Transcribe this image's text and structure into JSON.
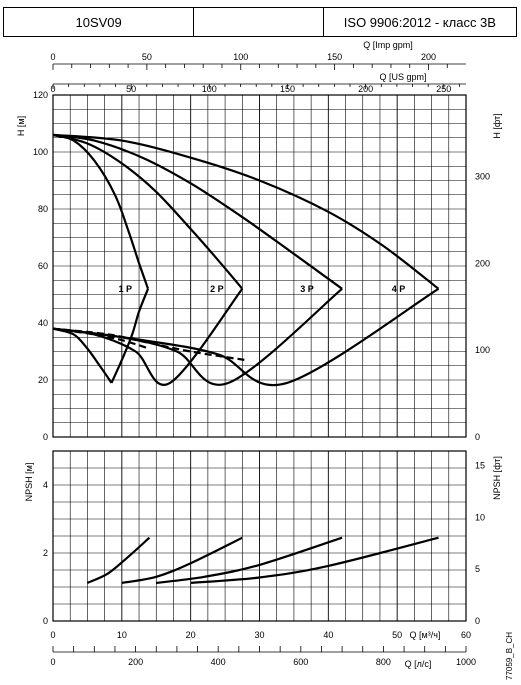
{
  "header": {
    "model": "10SV09",
    "middle": "",
    "standard": "ISO 9906:2012 - класс 3B"
  },
  "chart_data": [
    {
      "type": "line",
      "name": "head",
      "ylabel": "H [м]",
      "ylabel_right": "H [фт]",
      "xlabel_top1": "Q [Imp gpm]",
      "xlabel_top2": "Q [US gpm]",
      "xlim": [
        0,
        60
      ],
      "ylim": [
        0,
        120
      ],
      "yticks": [
        0,
        20,
        40,
        60,
        80,
        100,
        120
      ],
      "yticks_right": [
        0,
        100,
        200,
        300
      ],
      "xticks_imp": [
        0,
        50,
        100,
        150,
        200
      ],
      "xticks_us": [
        0,
        50,
        100,
        150,
        200,
        250
      ],
      "series": [
        {
          "name": "1 P",
          "style": "solid",
          "x": [
            0,
            3,
            6,
            9,
            11,
            12.5,
            13.8
          ],
          "y": [
            106,
            104,
            97,
            85,
            72,
            61,
            52
          ]
        },
        {
          "name": "2 P",
          "style": "solid",
          "x": [
            0,
            5,
            10,
            15,
            20,
            24,
            27.5
          ],
          "y": [
            106,
            103,
            96,
            86,
            73,
            62,
            52
          ]
        },
        {
          "name": "3 P",
          "style": "solid",
          "x": [
            0,
            6,
            13,
            20,
            27,
            34,
            42
          ],
          "y": [
            106,
            104,
            98,
            89,
            78,
            66,
            52
          ]
        },
        {
          "name": "4 P",
          "style": "solid",
          "x": [
            0,
            10,
            20,
            30,
            40,
            48,
            56
          ],
          "y": [
            106,
            104,
            98,
            90,
            79,
            67,
            52
          ]
        },
        {
          "name": "boundary",
          "style": "solid",
          "x": [
            0,
            3,
            5,
            6.5,
            8.5
          ],
          "y": [
            38,
            36,
            31,
            26,
            19
          ]
        },
        {
          "name": "boundary",
          "style": "solid",
          "x": [
            8.5,
            10,
            11.5,
            12.5,
            13.8
          ],
          "y": [
            19,
            27,
            36,
            44,
            52
          ]
        },
        {
          "name": "boundary",
          "style": "solid",
          "x": [
            0,
            6,
            12,
            17,
            27.5
          ],
          "y": [
            38,
            36,
            30,
            19,
            52
          ]
        },
        {
          "name": "boundary",
          "style": "solid",
          "x": [
            0,
            10,
            18,
            25.5,
            42
          ],
          "y": [
            38,
            35,
            30,
            19,
            52
          ]
        },
        {
          "name": "boundary",
          "style": "solid",
          "x": [
            0,
            13,
            24,
            34,
            56
          ],
          "y": [
            38,
            34,
            29,
            19,
            52
          ]
        },
        {
          "name": "efficiency-limit",
          "style": "dashed",
          "x": [
            0,
            6,
            10,
            14
          ],
          "y": [
            38,
            36,
            34,
            31
          ]
        },
        {
          "name": "efficiency-limit",
          "style": "dashed",
          "x": [
            0,
            8,
            14,
            20,
            28
          ],
          "y": [
            38,
            36,
            33,
            30,
            27
          ]
        }
      ],
      "labels": [
        {
          "text": "1 P",
          "x": 10.5,
          "y": 52
        },
        {
          "text": "2 P",
          "x": 23.8,
          "y": 52
        },
        {
          "text": "3 P",
          "x": 36.9,
          "y": 52
        },
        {
          "text": "4 P",
          "x": 50.2,
          "y": 52
        }
      ]
    },
    {
      "type": "line",
      "name": "npsh",
      "ylabel": "NPSH [м]",
      "ylabel_right": "NPSH [фт]",
      "xlabel_m3h": "Q [м³/ч]",
      "xlabel_ls": "Q [л/с]",
      "xlim": [
        0,
        60
      ],
      "ylim": [
        0,
        5
      ],
      "yticks": [
        0,
        2,
        4
      ],
      "yticks_right": [
        0,
        5,
        10,
        15
      ],
      "xticks_m3h": [
        0,
        10,
        20,
        30,
        40,
        50,
        60
      ],
      "xticks_ls": [
        0,
        200,
        400,
        600,
        800,
        1000
      ],
      "series": [
        {
          "name": "1 P",
          "x": [
            5,
            8,
            11,
            14
          ],
          "y": [
            1.12,
            1.4,
            1.9,
            2.45
          ]
        },
        {
          "name": "2 P",
          "x": [
            10,
            15,
            20,
            27.5
          ],
          "y": [
            1.12,
            1.3,
            1.7,
            2.45
          ]
        },
        {
          "name": "3 P",
          "x": [
            15,
            22,
            30,
            42
          ],
          "y": [
            1.12,
            1.3,
            1.65,
            2.45
          ]
        },
        {
          "name": "4 P",
          "x": [
            20,
            30,
            40,
            56
          ],
          "y": [
            1.12,
            1.28,
            1.62,
            2.45
          ]
        }
      ]
    }
  ],
  "footer_code": "77059_B_CH"
}
